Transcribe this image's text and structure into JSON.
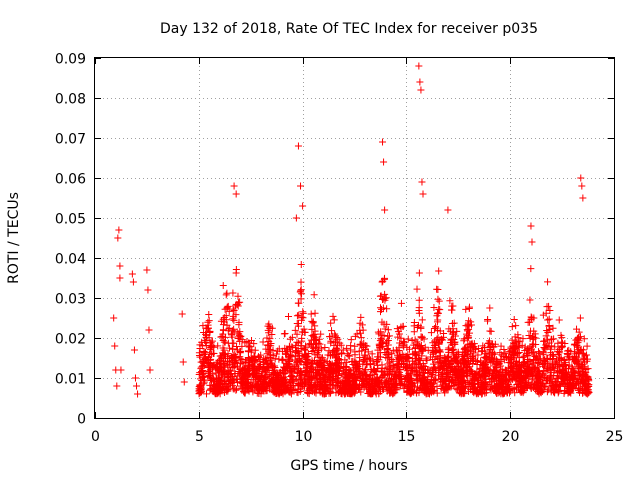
{
  "chart_data": {
    "type": "scatter",
    "title": "Day 132 of 2018, Rate Of TEC Index for receiver p035",
    "xlabel": "GPS time / hours",
    "ylabel": "ROTI / TECUs",
    "xlim": [
      0,
      25
    ],
    "ylim": [
      0,
      0.09
    ],
    "x_ticks": [
      0,
      5,
      10,
      15,
      20,
      25
    ],
    "y_ticks": [
      0,
      0.01,
      0.02,
      0.03,
      0.04,
      0.05,
      0.06,
      0.07,
      0.08,
      0.09
    ],
    "grid": true,
    "marker": "plus",
    "color": "#ff0000",
    "series": [
      {
        "x": [
          0.9,
          0.95,
          1.0,
          1.05,
          1.1,
          1.15,
          1.2,
          1.25,
          1.8,
          1.85,
          1.9,
          1.95,
          2.0,
          2.05,
          2.5,
          2.55,
          2.6,
          2.65,
          4.2,
          4.25,
          4.3,
          9.8,
          13.85,
          13.9,
          13.95,
          15.6,
          15.65,
          15.7,
          15.75,
          15.8,
          23.4,
          23.45,
          23.5,
          1.2,
          6.7,
          6.8,
          9.7,
          9.9,
          10.0,
          17.0,
          21.0,
          21.05
        ],
        "y": [
          0.025,
          0.018,
          0.012,
          0.008,
          0.045,
          0.047,
          0.038,
          0.012,
          0.036,
          0.034,
          0.017,
          0.01,
          0.008,
          0.006,
          0.037,
          0.032,
          0.022,
          0.012,
          0.026,
          0.014,
          0.009,
          0.068,
          0.069,
          0.064,
          0.052,
          0.088,
          0.084,
          0.082,
          0.059,
          0.056,
          0.06,
          0.058,
          0.055,
          0.035,
          0.058,
          0.056,
          0.05,
          0.058,
          0.053,
          0.052,
          0.048,
          0.044
        ]
      }
    ]
  }
}
